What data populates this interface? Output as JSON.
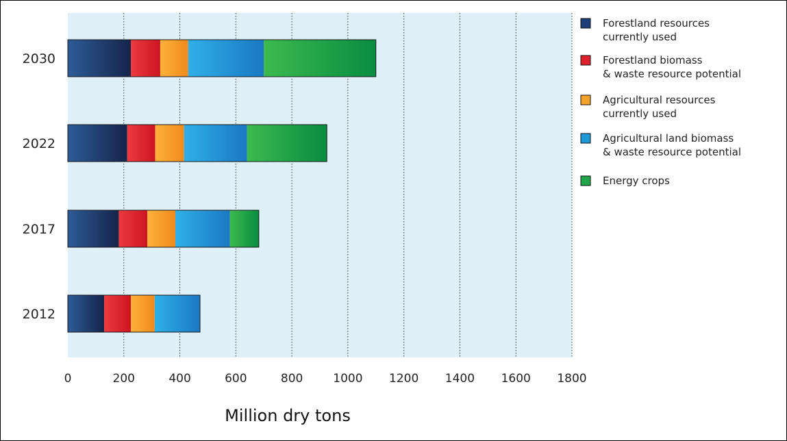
{
  "chart_data": {
    "type": "bar",
    "orientation": "horizontal",
    "stacked": true,
    "categories": [
      "2030",
      "2022",
      "2017",
      "2012"
    ],
    "series": [
      {
        "name": "Forestland resources currently used",
        "legend_lines": [
          "Forestland resources",
          "currently used"
        ],
        "color": "#1f3f78",
        "values": [
          225,
          212,
          182,
          130
        ]
      },
      {
        "name": "Forestland biomass & waste resource potential",
        "legend_lines": [
          "Forestland biomass",
          "& waste resource potential"
        ],
        "color": "#e0202c",
        "values": [
          105,
          100,
          102,
          95
        ]
      },
      {
        "name": "Agricultural resources currently used",
        "legend_lines": [
          "Agricultural resources",
          "currently used"
        ],
        "color": "#f5a22a",
        "values": [
          100,
          103,
          100,
          85
        ]
      },
      {
        "name": "Agricultural land biomass & waste resource potential",
        "legend_lines": [
          "Agricultural land biomass",
          "& waste resource potential"
        ],
        "color": "#1e9ad8",
        "values": [
          270,
          225,
          195,
          162
        ]
      },
      {
        "name": "Energy crops",
        "legend_lines": [
          "Energy crops"
        ],
        "color": "#22a64a",
        "values": [
          400,
          285,
          103,
          0
        ]
      }
    ],
    "xlim": [
      0,
      1800
    ],
    "xticks": [
      "0",
      "200",
      "400",
      "600",
      "800",
      "1000",
      "1200",
      "1400",
      "1600",
      "1800"
    ],
    "xlabel": "Million dry tons",
    "ylabel": "",
    "grid": "vertical dotted",
    "legend_position": "right",
    "plot_background": "#dff0f9"
  }
}
